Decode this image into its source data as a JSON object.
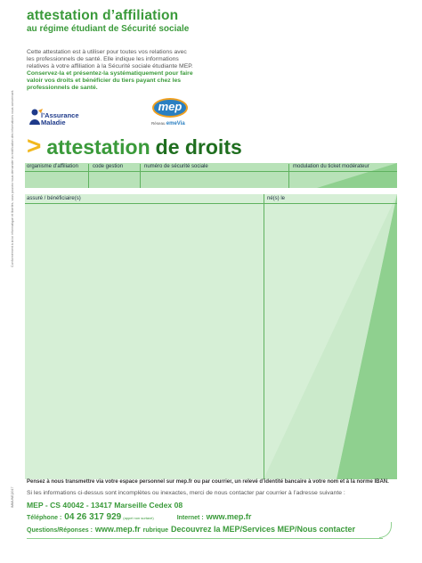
{
  "header": {
    "title": "attestation d’affiliation",
    "subtitle": "au régime étudiant de Sécurité sociale"
  },
  "intro": {
    "para1": "Cette attestation est à utiliser pour toutes vos relations avec les professionnels de santé. Elle indique les informations relatives à votre affiliation à la Sécurité sociale étudiante MEP.",
    "para2": "Conservez-la et présentez-la systématiquement pour faire valoir vos droits et bénéficier du tiers payant chez les professionnels de santé."
  },
  "logos": {
    "assurance_line1": "l’Assurance",
    "assurance_line2": "Maladie",
    "mep": "mep",
    "reseau": "Réseau",
    "emevia": "emeVia"
  },
  "heading": {
    "chevron": ">",
    "light": "attestation",
    "dark": "de droits"
  },
  "fields": {
    "organisme": "organisme d’affiliation",
    "code_gestion": "code gestion",
    "numero_secu": "numéro de sécurité sociale",
    "modulation": "modulation du ticket modérateur",
    "assure": "assuré / bénéficiaire(s)",
    "nes_le": "né(s) le"
  },
  "vertical": {
    "legal": "Conformément à la loi informatique et libertés, vous pouvez nous demander la rectification des informations vous concernant.",
    "code": "IMMUNE|2017"
  },
  "footer": {
    "iban_note": "Pensez à nous transmettre via votre espace personnel sur mep.fr ou par courrier, un relevé d’identité bancaire à votre nom et à la norme IBAN.",
    "contact_note": "Si les informations ci-dessus sont incomplètes ou inexactes, merci de nous contacter par courrier à l’adresse suivante :",
    "address": "MEP - CS 40042 - 13417 Marseille Cedex 08",
    "phone_label": "Téléphone :",
    "phone": "04 26 317 929",
    "phone_small": "(appel non surtaxé)",
    "internet_label": "Internet :",
    "internet": "www.mep.fr",
    "qa_label": "Questions/Réponses :",
    "qa_url": "www.mep.fr",
    "qa_rubrique": "rubrique",
    "qa_path": "Decouvrez la MEP/Services MEP/Nous contacter"
  },
  "colors": {
    "brand_green": "#3a9a3a",
    "dark_green": "#1f6e1f",
    "chevron_yellow": "#f2b81e",
    "band_green": "#b8e2b8",
    "panel_green": "#d6efd6",
    "accent_green": "#8fd08f"
  }
}
